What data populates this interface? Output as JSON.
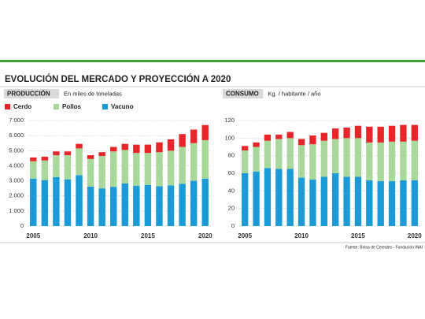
{
  "title": "EVOLUCIÓN DEL MERCADO Y PROYECCIÓN A 2020",
  "source": "Fuente: Bolsa de Cereales - Fundación INAI",
  "chart_data": [
    {
      "type": "bar",
      "stacked": true,
      "label": "PRODUCCIÓN",
      "subtitle": "En miles de toneladas",
      "categories": [
        2005,
        null,
        null,
        null,
        null,
        2010,
        null,
        null,
        null,
        null,
        2015,
        null,
        null,
        null,
        null,
        2020
      ],
      "series": [
        {
          "name": "Vacuno",
          "color": "#1a9ad7",
          "values": [
            3150,
            3050,
            3250,
            3100,
            3380,
            2620,
            2500,
            2600,
            2820,
            2680,
            2730,
            2640,
            2700,
            2800,
            3000,
            3150
          ]
        },
        {
          "name": "Pollos",
          "color": "#a9d99a",
          "values": [
            1150,
            1300,
            1450,
            1600,
            1770,
            1830,
            2150,
            2350,
            2230,
            2170,
            2120,
            2260,
            2300,
            2450,
            2500,
            2550
          ]
        },
        {
          "name": "Cerdo",
          "color": "#e8262a",
          "values": [
            250,
            250,
            250,
            250,
            300,
            250,
            250,
            300,
            400,
            550,
            550,
            650,
            750,
            850,
            900,
            1000
          ]
        }
      ],
      "ylim": [
        0,
        7000
      ],
      "yticks": [
        0,
        {
          "value": 1000,
          "label": "1.000"
        },
        {
          "value": 2000,
          "label": "2.000"
        },
        {
          "value": 3000,
          "label": "3.000"
        },
        {
          "value": 4000,
          "label": "4.000"
        },
        {
          "value": 5000,
          "label": "5.000"
        },
        {
          "value": 6000,
          "label": "6.000"
        },
        {
          "value": 7000,
          "label": "7.000"
        }
      ],
      "grid": true
    },
    {
      "type": "bar",
      "stacked": true,
      "label": "CONSUMO",
      "subtitle": "Kg. / habitante / año",
      "categories": [
        2005,
        null,
        null,
        null,
        null,
        2010,
        null,
        null,
        null,
        null,
        2015,
        null,
        null,
        null,
        null,
        2020
      ],
      "series": [
        {
          "color": "#1a9ad7",
          "values": [
            60,
            62,
            66,
            65,
            65,
            55,
            53,
            56,
            60,
            56,
            56,
            52,
            51,
            51,
            52,
            52
          ]
        },
        {
          "color": "#a9d99a",
          "values": [
            26,
            28,
            31,
            34,
            35,
            37,
            40,
            41,
            39,
            44,
            44,
            43,
            44,
            45,
            44,
            45
          ]
        },
        {
          "color": "#e8262a",
          "values": [
            5,
            5,
            7,
            5,
            7,
            7,
            10,
            9,
            12,
            12,
            14,
            18,
            18,
            18,
            19,
            18
          ]
        }
      ],
      "ylim": [
        0,
        120
      ],
      "yticks": [
        0,
        20,
        40,
        60,
        80,
        100,
        120
      ],
      "grid": true
    }
  ]
}
